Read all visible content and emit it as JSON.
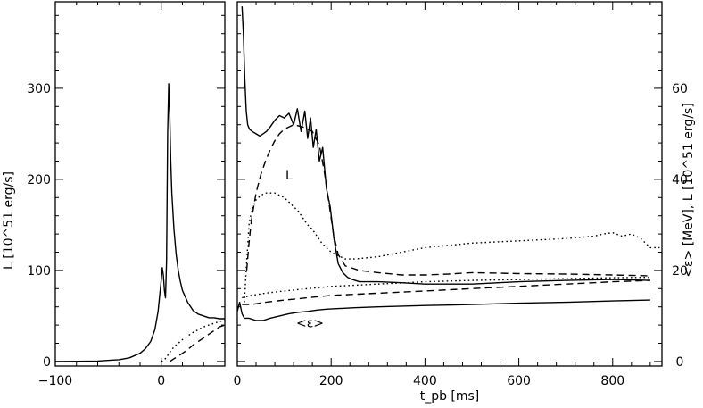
{
  "chart_data": [
    {
      "type": "line",
      "panel": "left",
      "xlabel": "",
      "ylabel": "L [10^51 erg/s]",
      "xlim": [
        -100,
        60
      ],
      "ylim": [
        -5,
        395
      ],
      "x_ticks": [
        -100,
        0
      ],
      "x_tick_labels": [
        "−100",
        "0"
      ],
      "y_ticks": [
        0,
        100,
        200,
        300
      ],
      "y_tick_labels": [
        "0",
        "100",
        "200",
        "300"
      ],
      "grid": false,
      "legend": "none",
      "series": [
        {
          "style": "solid",
          "x": [
            -100,
            -60,
            -40,
            -30,
            -20,
            -15,
            -10,
            -6,
            -3,
            0,
            1,
            2,
            3,
            4,
            5,
            6,
            7,
            8,
            9,
            10,
            12,
            14,
            16,
            18,
            20,
            25,
            30,
            35,
            40,
            45,
            50,
            55,
            60
          ],
          "y": [
            0,
            0.5,
            2,
            4,
            9,
            14,
            22,
            35,
            55,
            90,
            103,
            95,
            78,
            70,
            110,
            250,
            305,
            270,
            220,
            185,
            145,
            118,
            100,
            88,
            78,
            65,
            56,
            52,
            50,
            48,
            48,
            47,
            47
          ]
        },
        {
          "style": "dotted",
          "x": [
            0,
            3,
            5,
            8,
            12,
            16,
            20,
            25,
            30,
            35,
            40,
            45,
            50,
            55,
            60
          ],
          "y": [
            0,
            2,
            5,
            10,
            16,
            20,
            24,
            28,
            32,
            35,
            38,
            40,
            42,
            44,
            45
          ]
        },
        {
          "style": "dashed",
          "x": [
            8,
            12,
            16,
            20,
            25,
            30,
            35,
            40,
            45,
            50,
            55,
            60
          ],
          "y": [
            0,
            3,
            6,
            9,
            13,
            18,
            22,
            26,
            30,
            34,
            38,
            40
          ]
        }
      ]
    },
    {
      "type": "line",
      "panel": "right",
      "xlabel": "t_pb [ms]",
      "ylabel": "<ε> [MeV], L [10^51 erg/s]",
      "xlim": [
        0,
        905
      ],
      "ylim": [
        -1,
        79
      ],
      "y_axis_side": "right",
      "x_ticks": [
        0,
        200,
        400,
        600,
        800
      ],
      "x_tick_labels": [
        "0",
        "200",
        "400",
        "600",
        "800"
      ],
      "y_ticks": [
        0,
        20,
        40,
        60
      ],
      "y_tick_labels": [
        "0",
        "20",
        "40",
        "60"
      ],
      "grid": false,
      "legend": "none",
      "annotations": [
        {
          "text": "L",
          "x": 110,
          "y": 40
        },
        {
          "text": "<ε>",
          "x": 155,
          "y": 7.5
        }
      ],
      "series": [
        {
          "style": "solid",
          "x": [
            10,
            13,
            16,
            19,
            22,
            26,
            32,
            40,
            48,
            55,
            62,
            70,
            80,
            90,
            100,
            110,
            120,
            128,
            136,
            144,
            150,
            156,
            162,
            168,
            175,
            182,
            190,
            198,
            206,
            215,
            225,
            235,
            245,
            260,
            300,
            350,
            400,
            430,
            450,
            500,
            600,
            700,
            800,
            880
          ],
          "y": [
            78,
            72,
            62,
            55,
            52,
            51,
            50.5,
            50,
            49.5,
            50,
            50.5,
            51.5,
            53,
            54,
            53.5,
            54.5,
            52,
            55.5,
            50.5,
            55,
            49,
            53.5,
            47,
            51,
            44,
            47,
            38,
            34,
            27,
            21.5,
            19.5,
            18.5,
            18,
            17.5,
            17.5,
            17.3,
            17,
            17,
            17,
            17,
            17.5,
            17.8,
            18,
            17.8
          ]
        },
        {
          "style": "dashed",
          "x": [
            20,
            25,
            30,
            40,
            50,
            60,
            70,
            80,
            90,
            100,
            120,
            140,
            160,
            175,
            185,
            195,
            205,
            215,
            230,
            260,
            300,
            350,
            400,
            450,
            500,
            600,
            700,
            800,
            880
          ],
          "y": [
            20,
            26,
            31,
            37,
            41,
            44,
            46.5,
            48.5,
            50,
            51,
            52,
            51.5,
            50.5,
            47.5,
            42,
            35,
            28,
            23.5,
            21,
            20,
            19.5,
            19,
            19,
            19.2,
            19.5,
            19.3,
            19.2,
            19,
            18.8
          ]
        },
        {
          "style": "dotted",
          "x": [
            15,
            20,
            25,
            30,
            40,
            50,
            60,
            70,
            80,
            90,
            100,
            110,
            120,
            130,
            140,
            150,
            160,
            170,
            180,
            190,
            200,
            210,
            220,
            230,
            250,
            300,
            400,
            500,
            600,
            700,
            760,
            780,
            800,
            820,
            840,
            860,
            880,
            900
          ],
          "y": [
            13,
            22,
            30,
            33,
            35.5,
            36.5,
            37,
            37,
            37,
            36.5,
            36,
            35,
            34,
            33,
            31.5,
            30,
            29,
            27.5,
            26,
            25,
            24,
            23.5,
            23,
            22.5,
            22.5,
            23,
            25,
            26,
            26.5,
            27,
            27.5,
            28,
            28.3,
            27.5,
            28,
            27,
            25,
            25
          ]
        },
        {
          "style": "solid",
          "x": [
            0,
            5,
            10,
            15,
            25,
            40,
            55,
            70,
            90,
            110,
            130,
            150,
            170,
            190,
            250,
            300,
            400,
            500,
            600,
            700,
            800,
            880
          ],
          "y": [
            11,
            13,
            10.5,
            9.5,
            9.5,
            9,
            9,
            9.5,
            10,
            10.5,
            10.8,
            11,
            11.3,
            11.5,
            11.8,
            12,
            12.3,
            12.5,
            12.8,
            13,
            13.3,
            13.5
          ]
        },
        {
          "style": "dashed",
          "x": [
            10,
            30,
            60,
            100,
            150,
            200,
            300,
            400,
            500,
            600,
            700,
            800,
            880
          ],
          "y": [
            12.5,
            12.5,
            13,
            13.5,
            14,
            14.5,
            15,
            15.5,
            16,
            16.5,
            17,
            17.5,
            17.8
          ]
        },
        {
          "style": "dotted",
          "x": [
            10,
            30,
            60,
            100,
            150,
            200,
            300,
            400,
            500,
            600,
            700,
            800,
            880
          ],
          "y": [
            14,
            14.5,
            15,
            15.5,
            16,
            16.5,
            17,
            17.5,
            17.8,
            18,
            18.2,
            18.4,
            18.5
          ]
        }
      ]
    }
  ]
}
